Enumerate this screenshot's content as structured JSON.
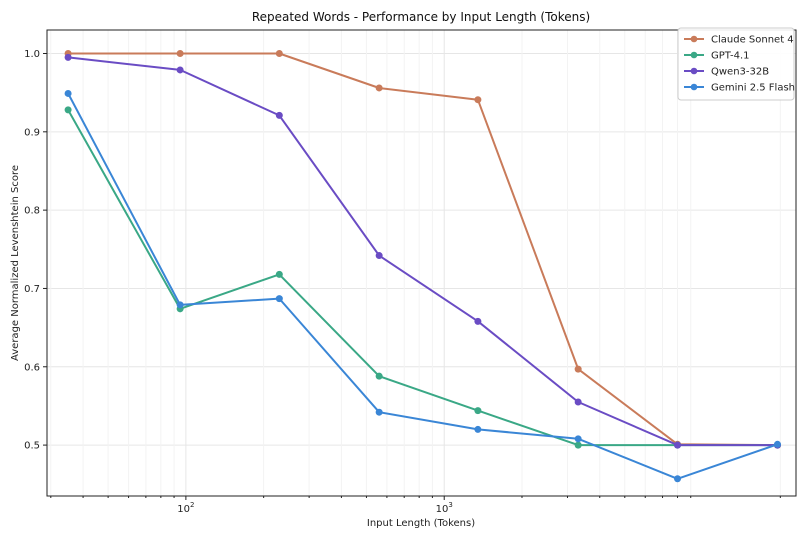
{
  "chart_data": {
    "type": "line",
    "title": "Repeated Words - Performance by Input Length (Tokens)",
    "xlabel": "Input Length (Tokens)",
    "ylabel": "Average Normalized Levenshtein Score",
    "x_scale": "log",
    "x": [
      35,
      95,
      230,
      560,
      1350,
      3300,
      8000,
      19500
    ],
    "xlim": [
      29,
      23000
    ],
    "ylim": [
      0.435,
      1.03
    ],
    "x_ticks": [
      {
        "value": 100,
        "base": "10",
        "exp": "2"
      },
      {
        "value": 1000,
        "base": "10",
        "exp": "3"
      }
    ],
    "y_ticks": [
      {
        "value": 0.5,
        "label": "0.5"
      },
      {
        "value": 0.6,
        "label": "0.6"
      },
      {
        "value": 0.7,
        "label": "0.7"
      },
      {
        "value": 0.8,
        "label": "0.8"
      },
      {
        "value": 0.9,
        "label": "0.9"
      },
      {
        "value": 1.0,
        "label": "1.0"
      }
    ],
    "grid": true,
    "legend_position": "top-right",
    "series": [
      {
        "name": "Claude Sonnet 4",
        "color": "#c97b5a",
        "values": [
          1.0,
          1.0,
          1.0,
          0.956,
          0.941,
          0.597,
          0.501,
          0.5
        ]
      },
      {
        "name": "GPT-4.1",
        "color": "#3aa886",
        "values": [
          0.928,
          0.674,
          0.718,
          0.588,
          0.544,
          0.5,
          0.5,
          0.5
        ]
      },
      {
        "name": "Qwen3-32B",
        "color": "#6a4cc4",
        "values": [
          0.995,
          0.979,
          0.921,
          0.742,
          0.658,
          0.555,
          0.5,
          0.5
        ]
      },
      {
        "name": "Gemini 2.5 Flash",
        "color": "#3a86d6",
        "values": [
          0.949,
          0.679,
          0.687,
          0.542,
          0.52,
          0.508,
          0.457,
          0.501
        ]
      }
    ]
  }
}
